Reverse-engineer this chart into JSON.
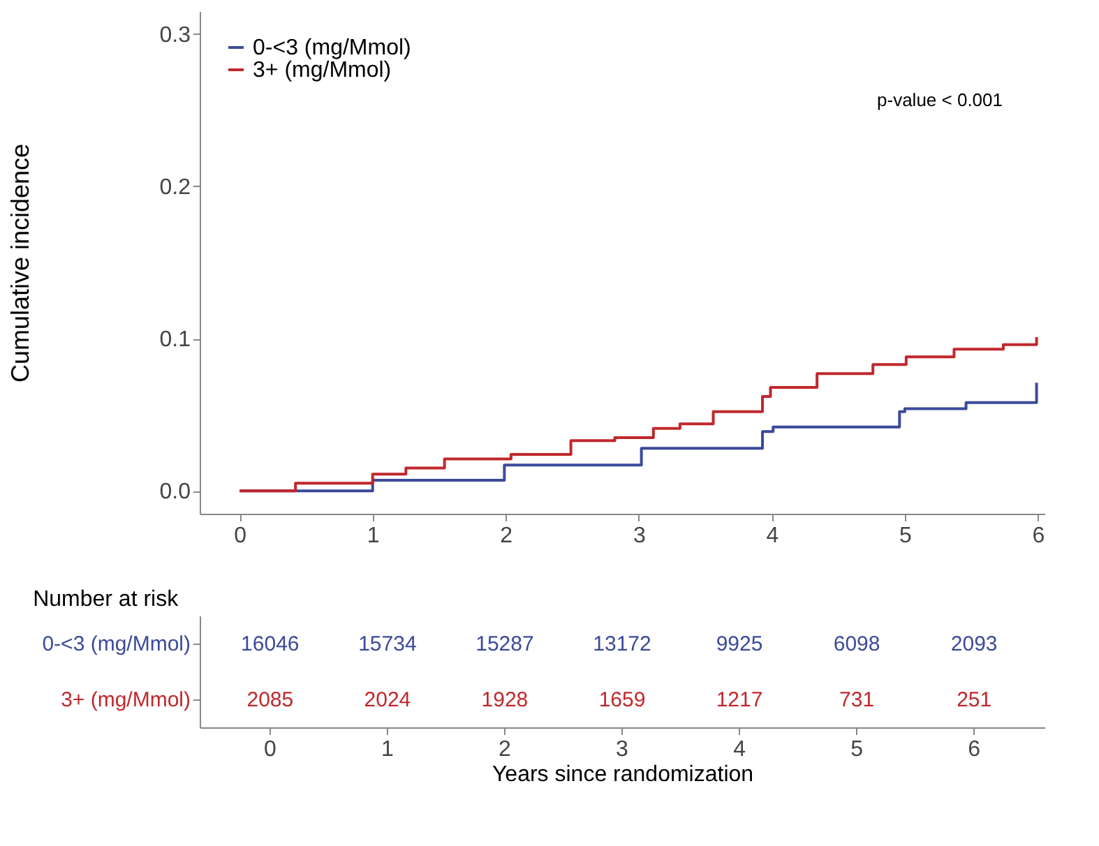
{
  "chart_data": [
    {
      "type": "step",
      "ylabel": "Cumulative incidence",
      "xlim": [
        -0.3,
        6.05
      ],
      "xticks": [
        0,
        1,
        2,
        3,
        4,
        5,
        6
      ],
      "ylim": [
        -0.015,
        0.315
      ],
      "yticks": [
        {
          "value": 0,
          "label": "0.0"
        },
        0.1,
        0.2,
        0.3
      ],
      "grid": false,
      "legend": "top left",
      "annotations": [
        "p-value < 0.001"
      ],
      "series": [
        {
          "name": "0-<3 (mg/Mmol)",
          "color": "#3b4a9a",
          "x": [
            0,
            1.0,
            1.99,
            3.02,
            3.93,
            4.01,
            4.96,
            5.0,
            5.46,
            5.99
          ],
          "values": [
            0,
            0.007,
            0.017,
            0.028,
            0.039,
            0.042,
            0.052,
            0.054,
            0.058,
            0.071
          ]
        },
        {
          "name": "3+ (mg/Mmol)",
          "color": "#c0282c",
          "x": [
            0,
            0.42,
            1.0,
            1.25,
            1.54,
            2.04,
            2.49,
            2.82,
            3.11,
            3.31,
            3.56,
            3.93,
            3.99,
            4.34,
            4.76,
            5.01,
            5.37,
            5.74,
            5.99
          ],
          "values": [
            0,
            0.005,
            0.011,
            0.015,
            0.021,
            0.024,
            0.033,
            0.035,
            0.041,
            0.044,
            0.052,
            0.062,
            0.068,
            0.077,
            0.083,
            0.088,
            0.093,
            0.096,
            0.101
          ]
        }
      ]
    },
    {
      "type": "heatmap",
      "title": "Number at risk",
      "xlabel": "Years since randomization",
      "categories": [
        "0",
        "1",
        "2",
        "3",
        "4",
        "5",
        "6"
      ],
      "y_categories": [
        "0-<3  (mg/Mmol)",
        "3+ (mg/Mmol)"
      ],
      "data_labels": true,
      "cells": [
        [
          16046,
          15734,
          15287,
          13172,
          9925,
          6098,
          2093
        ],
        [
          2085,
          2024,
          1928,
          1659,
          1217,
          731,
          251
        ]
      ]
    }
  ]
}
